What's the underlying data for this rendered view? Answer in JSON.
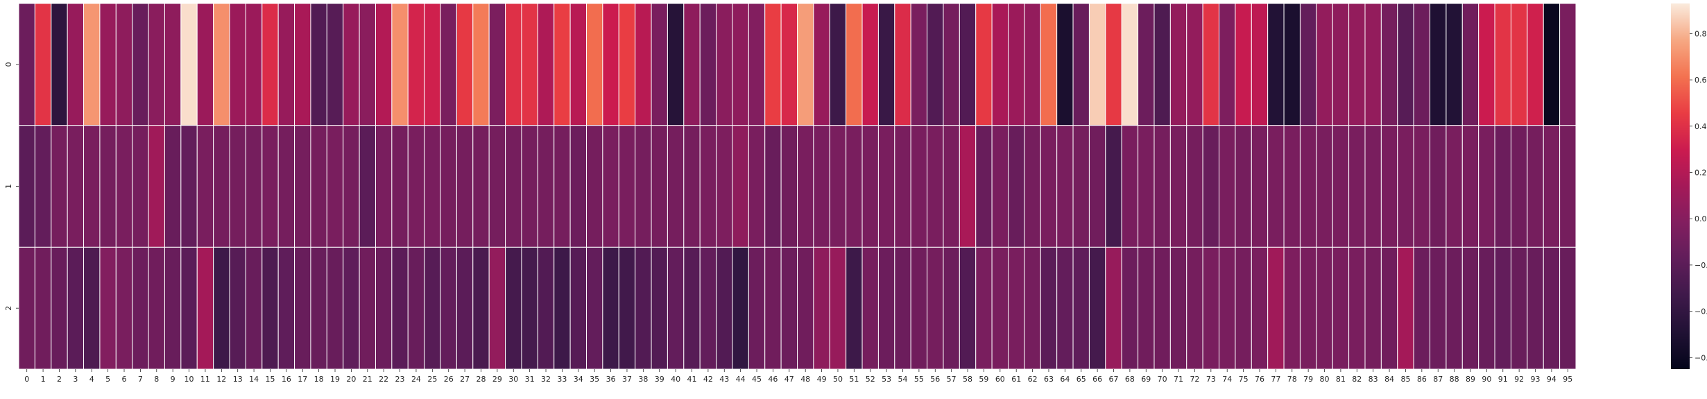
{
  "chart_data": {
    "type": "heatmap",
    "title": "",
    "xlabel": "",
    "ylabel": "",
    "x_categories": [
      "0",
      "1",
      "2",
      "3",
      "4",
      "5",
      "6",
      "7",
      "8",
      "9",
      "10",
      "11",
      "12",
      "13",
      "14",
      "15",
      "16",
      "17",
      "18",
      "19",
      "20",
      "21",
      "22",
      "23",
      "24",
      "25",
      "26",
      "27",
      "28",
      "29",
      "30",
      "31",
      "32",
      "33",
      "34",
      "35",
      "36",
      "37",
      "38",
      "39",
      "40",
      "41",
      "42",
      "43",
      "44",
      "45",
      "46",
      "47",
      "48",
      "49",
      "50",
      "51",
      "52",
      "53",
      "54",
      "55",
      "56",
      "57",
      "58",
      "59",
      "60",
      "61",
      "62",
      "63",
      "64",
      "65",
      "66",
      "67",
      "68",
      "69",
      "70",
      "71",
      "72",
      "73",
      "74",
      "75",
      "76",
      "77",
      "78",
      "79",
      "80",
      "81",
      "82",
      "83",
      "84",
      "85",
      "86",
      "87",
      "88",
      "89",
      "90",
      "91",
      "92",
      "93",
      "94",
      "95"
    ],
    "y_categories": [
      "0",
      "1",
      "2"
    ],
    "values": [
      [
        -0.12,
        0.42,
        -0.42,
        0.08,
        0.72,
        0.08,
        0.04,
        -0.14,
        0.02,
        0.04,
        0.9,
        0.1,
        0.7,
        0.1,
        0.1,
        0.38,
        0.08,
        0.16,
        -0.24,
        -0.22,
        0.08,
        0.02,
        0.2,
        0.7,
        0.34,
        0.32,
        -0.06,
        0.44,
        0.64,
        -0.05,
        0.4,
        0.42,
        0.18,
        0.46,
        0.22,
        0.6,
        0.3,
        0.46,
        0.22,
        -0.06,
        -0.46,
        0.04,
        -0.12,
        0.02,
        0.04,
        -0.02,
        0.46,
        0.36,
        0.74,
        0.08,
        -0.34,
        0.6,
        0.28,
        -0.36,
        0.38,
        -0.06,
        -0.24,
        -0.08,
        -0.24,
        0.44,
        0.16,
        0.1,
        0.06,
        0.6,
        -0.52,
        -0.14,
        0.86,
        0.44,
        0.9,
        -0.12,
        -0.26,
        0.06,
        0.06,
        0.42,
        -0.04,
        0.28,
        0.24,
        -0.48,
        -0.52,
        -0.16,
        0.06,
        0.04,
        0.06,
        0.06,
        -0.08,
        -0.22,
        -0.12,
        -0.5,
        -0.48,
        -0.1,
        0.3,
        0.42,
        0.42,
        0.32,
        -0.62,
        -0.06
      ],
      [
        -0.2,
        -0.16,
        -0.08,
        -0.06,
        -0.06,
        -0.08,
        -0.06,
        -0.08,
        0.12,
        -0.14,
        -0.16,
        -0.06,
        -0.08,
        -0.08,
        -0.08,
        -0.06,
        -0.08,
        -0.08,
        -0.08,
        -0.06,
        -0.08,
        -0.2,
        -0.06,
        -0.08,
        -0.06,
        -0.06,
        -0.08,
        -0.08,
        -0.08,
        -0.08,
        -0.08,
        -0.08,
        -0.08,
        -0.08,
        -0.12,
        -0.08,
        -0.06,
        -0.06,
        -0.08,
        -0.08,
        -0.08,
        -0.08,
        -0.06,
        -0.04,
        0.04,
        -0.06,
        -0.14,
        -0.1,
        -0.06,
        -0.06,
        -0.06,
        -0.06,
        -0.06,
        -0.06,
        -0.06,
        -0.06,
        -0.06,
        -0.06,
        0.16,
        -0.14,
        -0.06,
        -0.14,
        -0.08,
        -0.06,
        -0.06,
        -0.08,
        -0.1,
        -0.3,
        -0.06,
        -0.06,
        -0.08,
        -0.06,
        -0.08,
        -0.14,
        -0.06,
        -0.08,
        -0.06,
        -0.06,
        -0.06,
        -0.06,
        -0.06,
        -0.06,
        -0.06,
        -0.06,
        -0.06,
        -0.06,
        -0.06,
        -0.1,
        -0.06,
        -0.06,
        -0.06,
        -0.12,
        -0.1,
        -0.08,
        -0.06,
        -0.08
      ],
      [
        -0.1,
        -0.1,
        -0.14,
        -0.2,
        -0.26,
        -0.02,
        -0.06,
        -0.12,
        -0.1,
        -0.14,
        -0.2,
        0.14,
        -0.34,
        -0.22,
        -0.14,
        -0.26,
        -0.18,
        -0.14,
        -0.14,
        -0.14,
        -0.18,
        -0.1,
        -0.12,
        -0.2,
        -0.14,
        -0.22,
        -0.16,
        -0.2,
        -0.28,
        0.06,
        -0.3,
        -0.3,
        -0.24,
        -0.34,
        -0.22,
        -0.16,
        -0.34,
        -0.32,
        -0.24,
        -0.24,
        -0.16,
        -0.22,
        -0.16,
        -0.24,
        -0.4,
        -0.12,
        -0.1,
        -0.12,
        -0.1,
        0.04,
        0.08,
        -0.34,
        -0.08,
        -0.12,
        -0.12,
        -0.1,
        -0.08,
        -0.12,
        -0.24,
        -0.06,
        -0.06,
        -0.06,
        -0.08,
        -0.2,
        -0.16,
        -0.18,
        -0.3,
        0.08,
        -0.12,
        -0.1,
        -0.1,
        -0.1,
        -0.08,
        -0.06,
        -0.06,
        -0.08,
        -0.06,
        0.12,
        -0.04,
        -0.06,
        -0.06,
        -0.06,
        -0.06,
        -0.08,
        -0.1,
        0.14,
        -0.12,
        -0.12,
        -0.12,
        -0.12,
        -0.14,
        -0.16,
        -0.14,
        -0.14,
        -0.14,
        -0.14
      ]
    ],
    "vmin": -0.65,
    "vmax": 0.93,
    "colormap": "rocket",
    "colorbar_ticks": [
      "0.8",
      "0.6",
      "0.4",
      "0.2",
      "0.0",
      "−0.2",
      "−0.4",
      "−0.6"
    ],
    "colorbar_tick_values": [
      0.8,
      0.6,
      0.4,
      0.2,
      0.0,
      -0.2,
      -0.4,
      -0.6
    ]
  }
}
